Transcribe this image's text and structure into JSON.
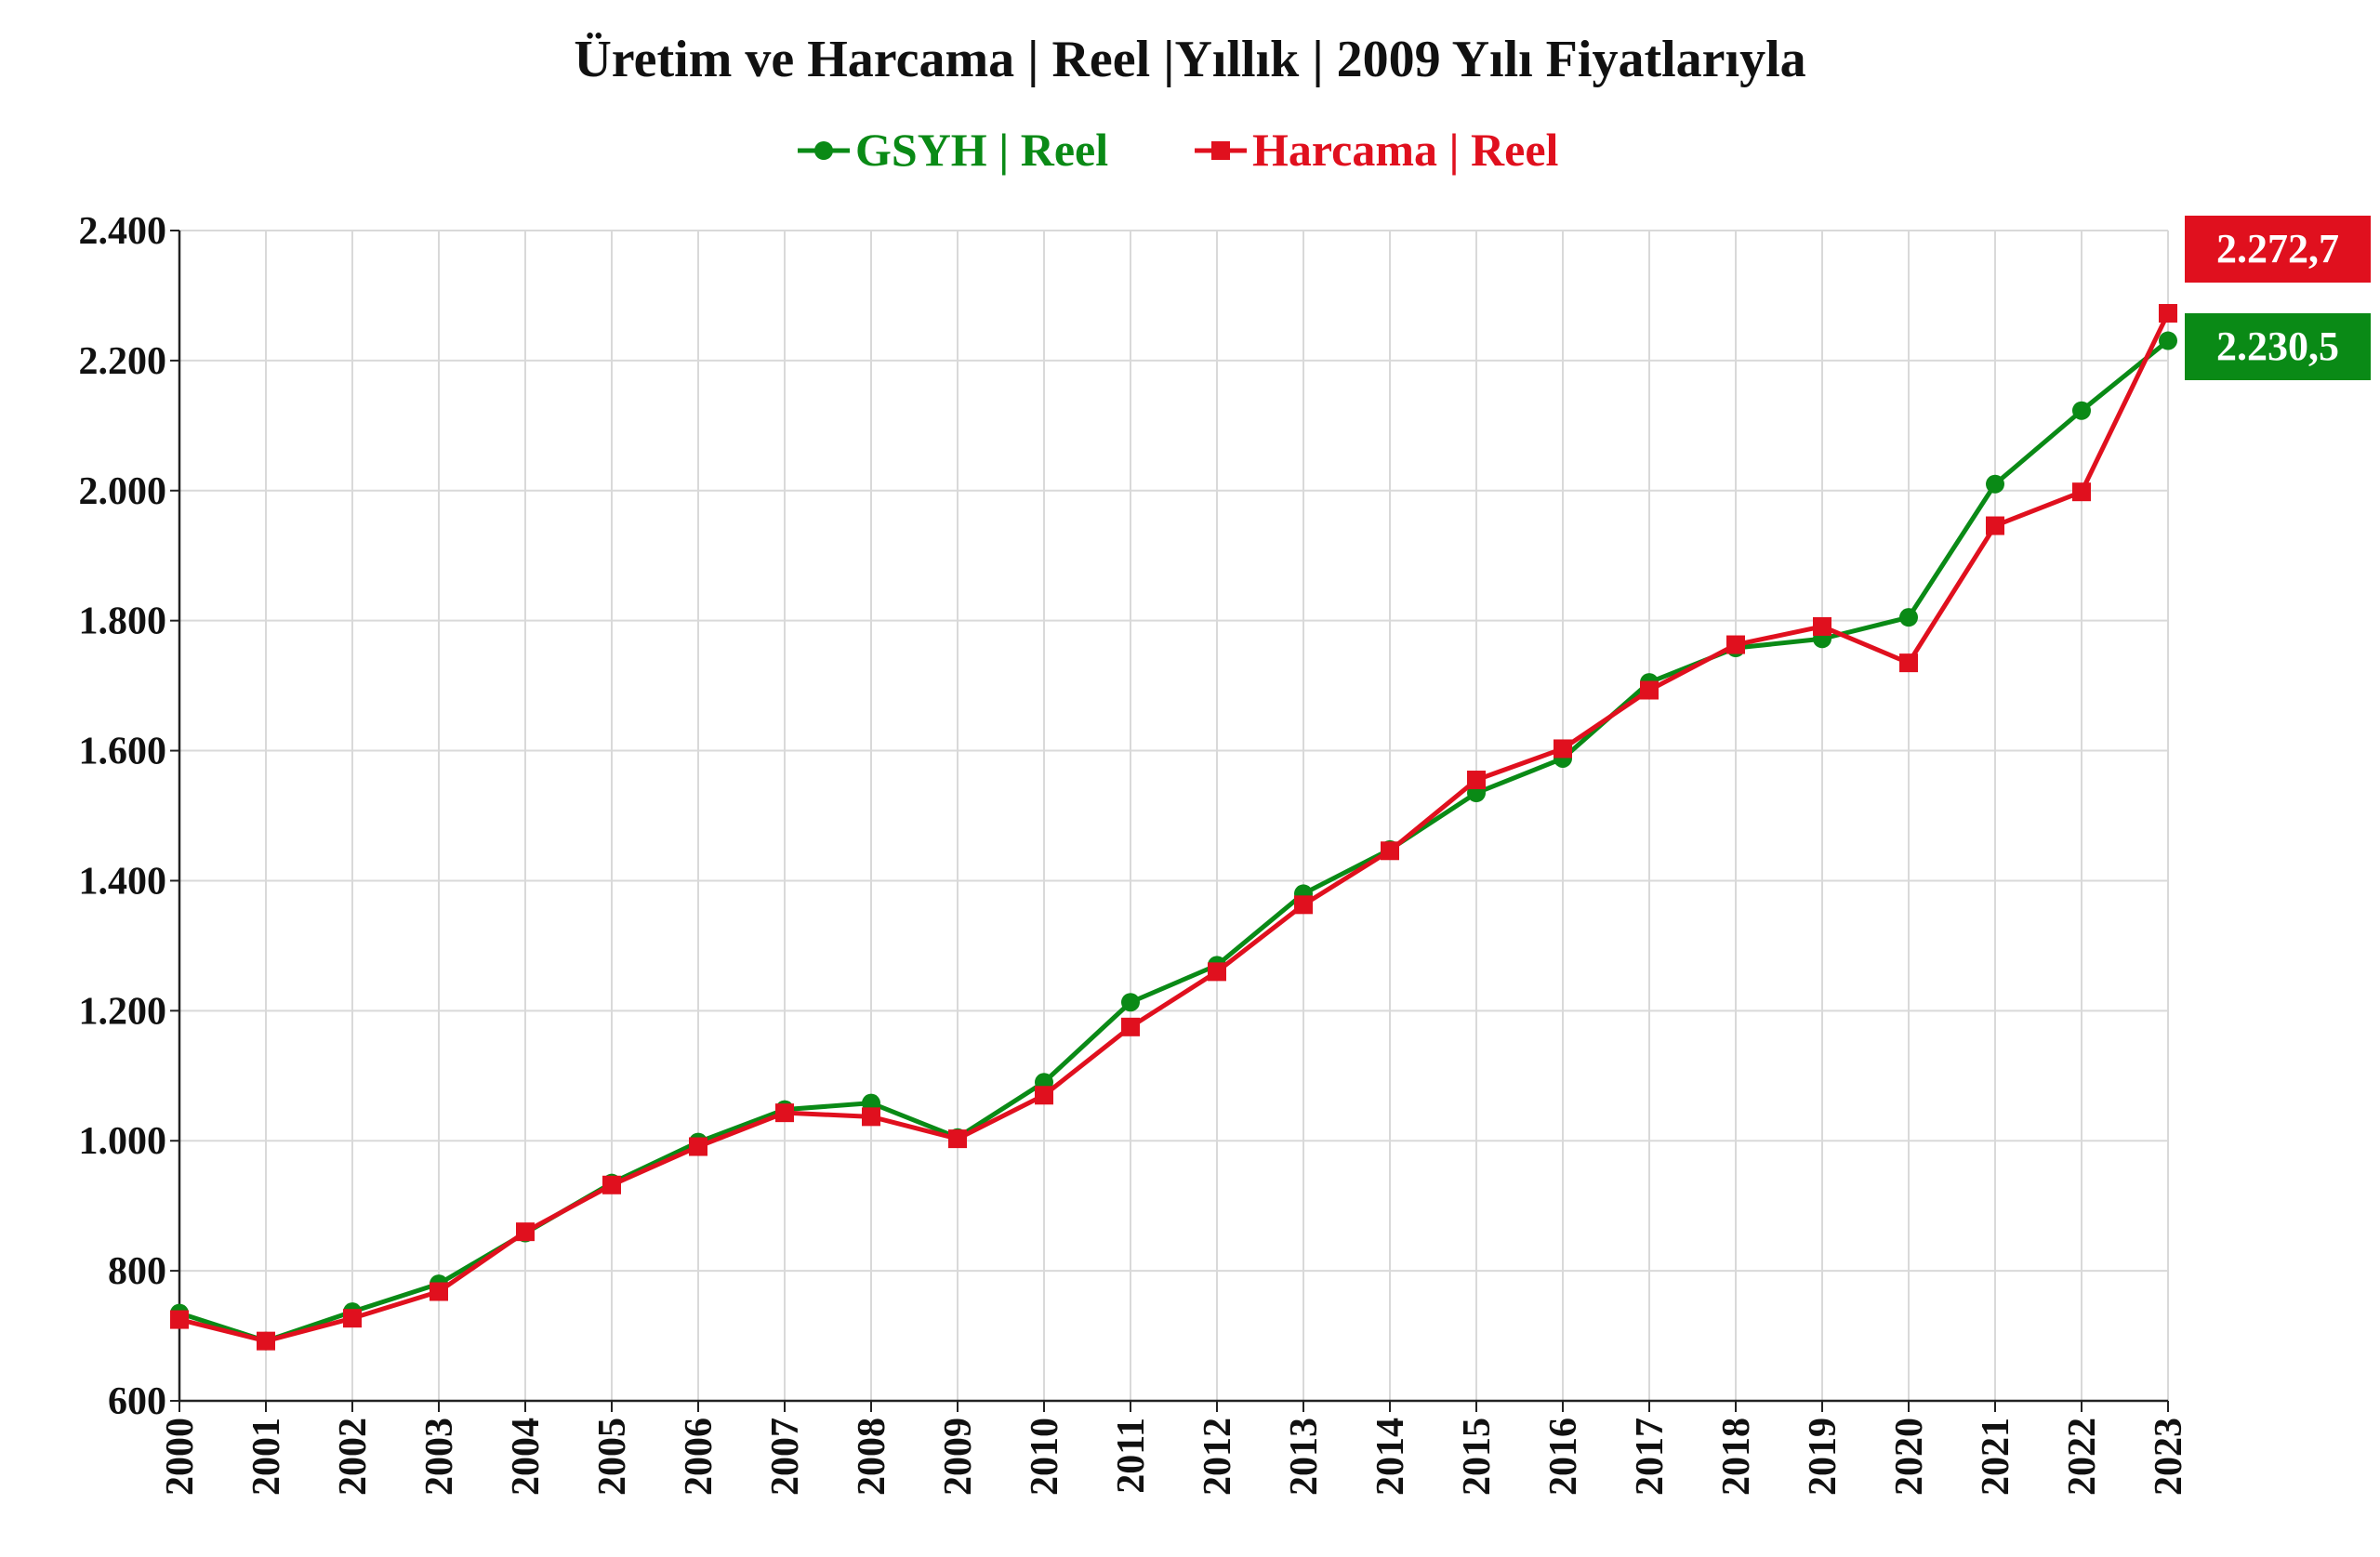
{
  "chart_data": {
    "type": "line",
    "title": "Üretim ve Harcama | Reel |Yıllık | 2009 Yılı Fiyatlarıyla",
    "xlabel": "",
    "ylabel": "",
    "ylim": [
      600,
      2400
    ],
    "yticks": [
      600,
      800,
      1000,
      1200,
      1400,
      1600,
      1800,
      2000,
      2200,
      2400
    ],
    "ytick_labels": [
      "600",
      "800",
      "1.000",
      "1.200",
      "1.400",
      "1.600",
      "1.800",
      "2.000",
      "2.200",
      "2.400"
    ],
    "grid": true,
    "legend": "top-center",
    "categories": [
      "2000",
      "2001",
      "2002",
      "2003",
      "2004",
      "2005",
      "2006",
      "2007",
      "2008",
      "2009",
      "2010",
      "2011",
      "2012",
      "2013",
      "2014",
      "2015",
      "2016",
      "2017",
      "2018",
      "2019",
      "2020",
      "2021",
      "2022",
      "2023"
    ],
    "series": [
      {
        "name": "GSYH | Reel",
        "color": "#0a8a16",
        "marker": "circle",
        "values": [
          735,
          692,
          737,
          780,
          858,
          935,
          998,
          1048,
          1058,
          1005,
          1090,
          1213,
          1270,
          1380,
          1448,
          1535,
          1588,
          1705,
          1758,
          1772,
          1805,
          2010,
          2123,
          2230.5
        ],
        "end_label": "2.230,5"
      },
      {
        "name": "Harcama | Reel",
        "color": "#e0101e",
        "marker": "square",
        "values": [
          725,
          692,
          727,
          768,
          860,
          932,
          991,
          1043,
          1037,
          1003,
          1070,
          1175,
          1260,
          1363,
          1446,
          1555,
          1603,
          1693,
          1763,
          1791,
          1735,
          1946,
          1998,
          2272.7
        ],
        "end_label": "2.272,7"
      }
    ]
  }
}
